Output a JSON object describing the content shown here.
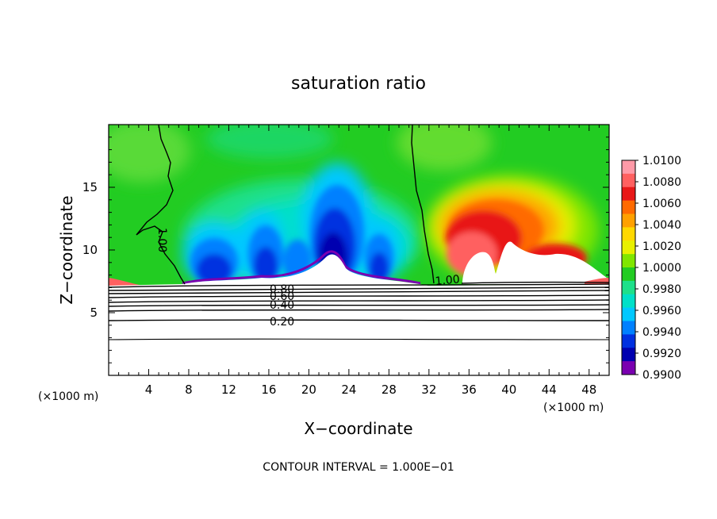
{
  "chart_data": {
    "type": "contour",
    "title": "saturation ratio",
    "xlabel": "X−coordinate",
    "ylabel": "Z−coordinate",
    "x_units_left": "(×1000 m)",
    "x_units_right": "(×1000 m)",
    "footer": "CONTOUR INTERVAL = 1.000E−01",
    "xlim": [
      0,
      50
    ],
    "ylim": [
      0,
      20
    ],
    "x_ticks": [
      4,
      8,
      12,
      16,
      20,
      24,
      28,
      32,
      36,
      40,
      44,
      48
    ],
    "y_ticks": [
      5,
      10,
      15
    ],
    "colorbar": {
      "levels": [
        "1.0100",
        "1.0080",
        "1.0060",
        "1.0040",
        "1.0020",
        "1.0000",
        "0.9980",
        "0.9960",
        "0.9940",
        "0.9920",
        "0.9900"
      ],
      "colors": [
        "#ff9aa8",
        "#ff6060",
        "#e81818",
        "#ff6a00",
        "#ffa000",
        "#ffd800",
        "#e8f000",
        "#80e600",
        "#22cc22",
        "#1ee08a",
        "#00e0c8",
        "#00c8ff",
        "#0080ff",
        "#0030e0",
        "#0000b0",
        "#7a00b0"
      ]
    },
    "contour_labels": [
      "0.80",
      "0.60",
      "0.40",
      "0.20",
      "1.00",
      "1.00"
    ],
    "contour_levels_below_terrain": [
      0.2,
      0.4,
      0.6,
      0.8
    ]
  },
  "colors": {
    "background": "#ffffff",
    "axis": "#000000",
    "field_base": "#22cc22"
  }
}
